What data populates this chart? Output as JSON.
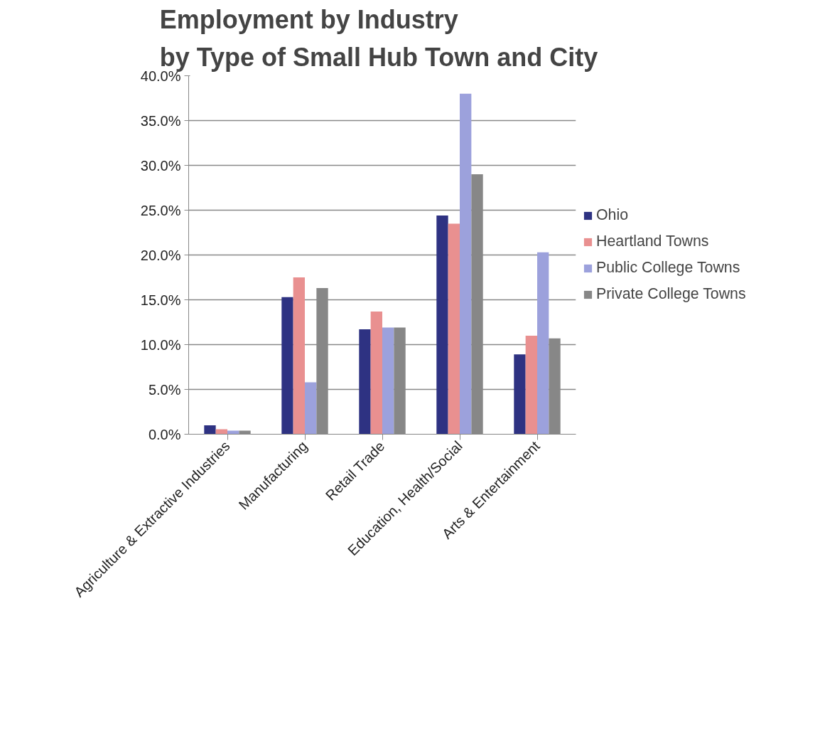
{
  "chart_data": {
    "type": "bar",
    "title": "Employment by Industry\nby Type  of Small Hub Town and City",
    "categories": [
      "Agriculture & Extractive Industries",
      "Manufacturing",
      "Retail Trade",
      "Education, Health/Social",
      "Arts & Entertainment"
    ],
    "series": [
      {
        "name": "Ohio",
        "color": "#2e3282",
        "values": [
          1.0,
          15.3,
          11.7,
          24.4,
          8.9
        ]
      },
      {
        "name": "Heartland Towns",
        "color": "#e99090",
        "values": [
          0.55,
          17.5,
          13.7,
          23.5,
          11.0
        ]
      },
      {
        "name": "Public College Towns",
        "color": "#9ca1dc",
        "values": [
          0.4,
          5.8,
          11.9,
          38.0,
          20.3
        ]
      },
      {
        "name": "Private College Towns",
        "color": "#878787",
        "values": [
          0.4,
          16.3,
          11.9,
          29.0,
          10.7
        ]
      }
    ],
    "ylim": [
      0,
      40
    ],
    "yticks": [
      {
        "value": 0,
        "label": "0.0%"
      },
      {
        "value": 5,
        "label": "5.0%"
      },
      {
        "value": 10,
        "label": "10.0%"
      },
      {
        "value": 15,
        "label": "15.0%"
      },
      {
        "value": 20,
        "label": "20.0%"
      },
      {
        "value": 25,
        "label": "25.0%"
      },
      {
        "value": 30,
        "label": "30.0%"
      },
      {
        "value": 35,
        "label": "35.0%"
      },
      {
        "value": 40,
        "label": "40.0%"
      }
    ],
    "grid": "y",
    "legend": "right"
  }
}
